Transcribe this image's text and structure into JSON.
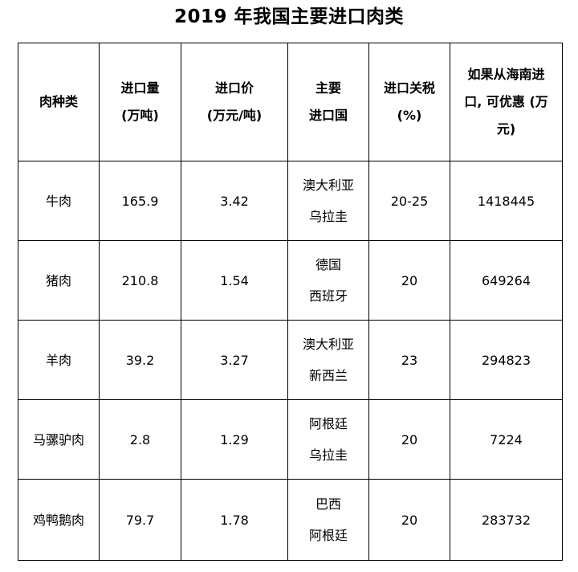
{
  "title": "2019 年我国主要进口肉类",
  "table": {
    "headers": [
      [
        "肉种类"
      ],
      [
        "进口量",
        "(万吨)"
      ],
      [
        "进口价",
        "(万元/吨)"
      ],
      [
        "主要",
        "进口国"
      ],
      [
        "进口关税",
        "(%)"
      ],
      [
        "如果从海南进",
        "口, 可优惠 (万",
        "元)"
      ]
    ],
    "rows": [
      {
        "type": "牛肉",
        "volume": "165.9",
        "price": "3.42",
        "countries": [
          "澳大利亚",
          "乌拉圭"
        ],
        "tariff": "20-25",
        "savings": "1418445"
      },
      {
        "type": "猪肉",
        "volume": "210.8",
        "price": "1.54",
        "countries": [
          "德国",
          "西班牙"
        ],
        "tariff": "20",
        "savings": "649264"
      },
      {
        "type": "羊肉",
        "volume": "39.2",
        "price": "3.27",
        "countries": [
          "澳大利亚",
          "新西兰"
        ],
        "tariff": "23",
        "savings": "294823"
      },
      {
        "type": "马骡驴肉",
        "volume": "2.8",
        "price": "1.29",
        "countries": [
          "阿根廷",
          "乌拉圭"
        ],
        "tariff": "20",
        "savings": "7224"
      },
      {
        "type": "鸡鸭鹅肉",
        "volume": "79.7",
        "price": "1.78",
        "countries": [
          "巴西",
          "阿根廷"
        ],
        "tariff": "20",
        "savings": "283732"
      }
    ]
  }
}
